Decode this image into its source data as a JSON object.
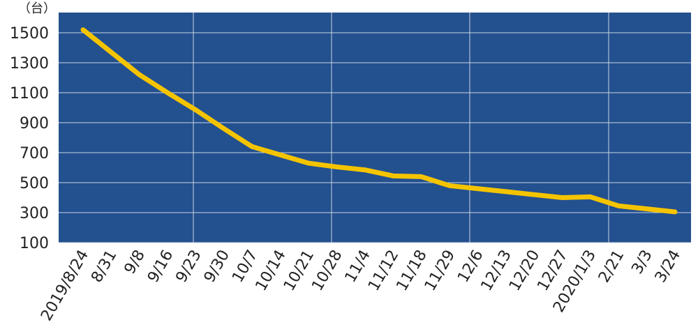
{
  "chart_data": {
    "type": "line",
    "unit": "（台）",
    "categories": [
      "2019/8/24",
      "8/31",
      "9/8",
      "9/16",
      "9/23",
      "9/30",
      "10/7",
      "10/14",
      "10/21",
      "10/28",
      "11/4",
      "11/12",
      "11/18",
      "11/29",
      "12/6",
      "12/13",
      "12/20",
      "12/27",
      "2020/1/3",
      "2/21",
      "3/3",
      "3/24"
    ],
    "series": [
      {
        "color": "#f5c400",
        "values": [
          1520,
          1370,
          1220,
          1100,
          985,
          860,
          740,
          685,
          630,
          605,
          585,
          545,
          540,
          480,
          460,
          440,
          420,
          400,
          405,
          345,
          325,
          305
        ]
      }
    ],
    "ylim": [
      100,
      1635
    ],
    "yticks": [
      100,
      300,
      500,
      700,
      900,
      1100,
      1300,
      1500
    ],
    "grid": true,
    "background": "#23508f"
  }
}
